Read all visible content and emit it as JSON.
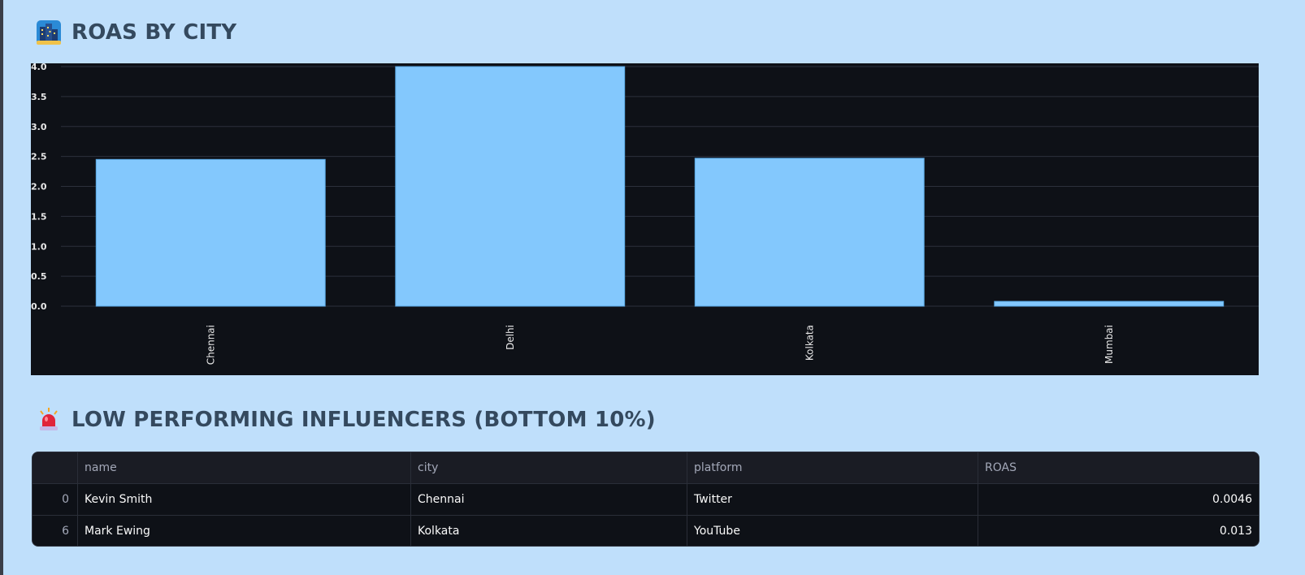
{
  "sections": {
    "roas_by_city": {
      "title": "ROAS BY CITY",
      "icon": "cityscape-icon"
    },
    "low_performers": {
      "title": "LOW PERFORMING INFLUENCERS (BOTTOM 10%)",
      "icon": "police-light-icon"
    }
  },
  "chart_data": {
    "type": "bar",
    "categories": [
      "Chennai",
      "Delhi",
      "Kolkata",
      "Mumbai"
    ],
    "values": [
      2.45,
      4.0,
      2.47,
      0.08
    ],
    "title": "",
    "xlabel": "",
    "ylabel": "",
    "ylim": [
      0,
      4.0
    ],
    "yticks": [
      "0.0",
      "0.5",
      "1.0",
      "1.5",
      "2.0",
      "2.5",
      "3.0",
      "3.5",
      "4.0"
    ],
    "grid": true,
    "bar_color": "#83c8fd",
    "background": "#0e1117"
  },
  "table": {
    "columns": [
      "",
      "name",
      "city",
      "platform",
      "ROAS"
    ],
    "rows": [
      {
        "index": "0",
        "name": "Kevin Smith",
        "city": "Chennai",
        "platform": "Twitter",
        "roas": "0.0046"
      },
      {
        "index": "6",
        "name": "Mark Ewing",
        "city": "Kolkata",
        "platform": "YouTube",
        "roas": "0.013"
      }
    ]
  },
  "colors": {
    "page_background": "#bfdffb",
    "title_text": "#34495e",
    "panel_background": "#0e1117"
  }
}
